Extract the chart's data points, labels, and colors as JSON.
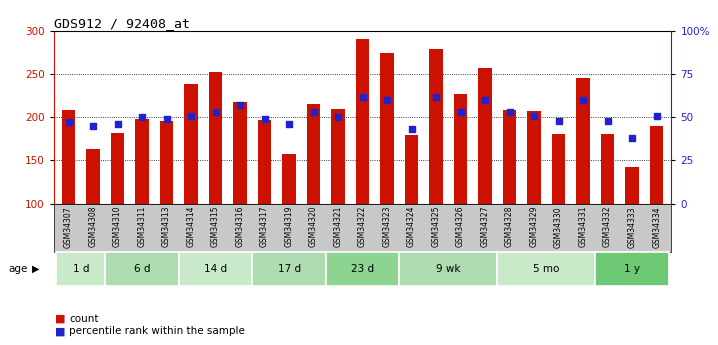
{
  "title": "GDS912 / 92408_at",
  "samples": [
    "GSM34307",
    "GSM34308",
    "GSM34310",
    "GSM34311",
    "GSM34313",
    "GSM34314",
    "GSM34315",
    "GSM34316",
    "GSM34317",
    "GSM34319",
    "GSM34320",
    "GSM34321",
    "GSM34322",
    "GSM34323",
    "GSM34324",
    "GSM34325",
    "GSM34326",
    "GSM34327",
    "GSM34328",
    "GSM34329",
    "GSM34330",
    "GSM34331",
    "GSM34332",
    "GSM34333",
    "GSM34334"
  ],
  "counts": [
    208,
    163,
    182,
    198,
    196,
    239,
    252,
    218,
    197,
    158,
    215,
    210,
    291,
    274,
    179,
    279,
    227,
    257,
    208,
    207,
    181,
    246,
    181,
    142,
    190
  ],
  "percentile_ranks": [
    47,
    45,
    46,
    50,
    49,
    51,
    53,
    57,
    49,
    46,
    53,
    50,
    62,
    60,
    43,
    62,
    53,
    60,
    53,
    51,
    48,
    60,
    48,
    38,
    51
  ],
  "groups": [
    {
      "label": "1 d",
      "start": 0,
      "end": 2,
      "color": "#c8eac9"
    },
    {
      "label": "6 d",
      "start": 2,
      "end": 5,
      "color": "#aedcb0"
    },
    {
      "label": "14 d",
      "start": 5,
      "end": 8,
      "color": "#c8eac9"
    },
    {
      "label": "17 d",
      "start": 8,
      "end": 11,
      "color": "#aedcb0"
    },
    {
      "label": "23 d",
      "start": 11,
      "end": 14,
      "color": "#8dd491"
    },
    {
      "label": "9 wk",
      "start": 14,
      "end": 18,
      "color": "#aedcb0"
    },
    {
      "label": "5 mo",
      "start": 18,
      "end": 22,
      "color": "#c8eac9"
    },
    {
      "label": "1 y",
      "start": 22,
      "end": 25,
      "color": "#6ec975"
    }
  ],
  "ylim_left": [
    100,
    300
  ],
  "ylim_right": [
    0,
    100
  ],
  "yticks_left": [
    100,
    150,
    200,
    250,
    300
  ],
  "yticks_right": [
    0,
    25,
    50,
    75,
    100
  ],
  "bar_color": "#cc1100",
  "marker_color": "#2222cc",
  "tick_label_bg": "#c8c8c8"
}
